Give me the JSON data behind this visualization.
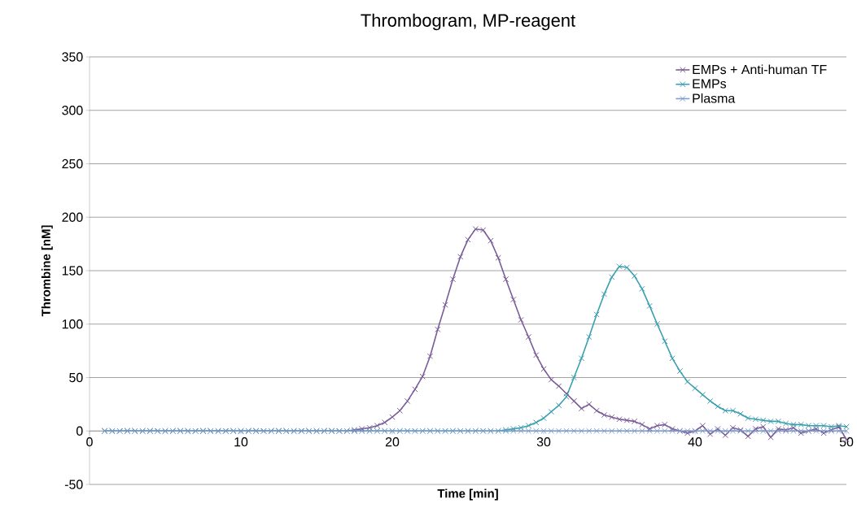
{
  "chart_data": {
    "type": "line",
    "title": "Thrombogram, MP-reagent",
    "xlabel": "Time [min]",
    "ylabel": "Thrombine [nM]",
    "x": [
      1,
      1.5,
      2,
      2.5,
      3,
      3.5,
      4,
      4.5,
      5,
      5.5,
      6,
      6.5,
      7,
      7.5,
      8,
      8.5,
      9,
      9.5,
      10,
      10.5,
      11,
      11.5,
      12,
      12.5,
      13,
      13.5,
      14,
      14.5,
      15,
      15.5,
      16,
      16.5,
      17,
      17.5,
      18,
      18.5,
      19,
      19.5,
      20,
      20.5,
      21,
      21.5,
      22,
      22.5,
      23,
      23.5,
      24,
      24.5,
      25,
      25.5,
      26,
      26.5,
      27,
      27.5,
      28,
      28.5,
      29,
      29.5,
      30,
      30.5,
      31,
      31.5,
      32,
      32.5,
      33,
      33.5,
      34,
      34.5,
      35,
      35.5,
      36,
      36.5,
      37,
      37.5,
      38,
      38.5,
      39,
      39.5,
      40,
      40.5,
      41,
      41.5,
      42,
      42.5,
      43,
      43.5,
      44,
      44.5,
      45,
      45.5,
      46,
      46.5,
      47,
      47.5,
      48,
      48.5,
      49,
      49.5,
      50
    ],
    "series": [
      {
        "name": "EMPs + Anti-human TF",
        "color": "#7a5c98",
        "marker": "cross",
        "values": [
          0,
          0,
          0,
          0,
          0,
          0,
          0,
          0,
          0,
          0,
          0,
          0,
          0,
          0,
          0,
          0,
          0,
          0,
          0,
          0,
          0,
          0,
          0,
          0,
          0,
          0,
          0,
          0,
          0,
          0,
          0,
          0,
          0,
          1,
          2,
          3,
          5,
          8,
          13,
          19,
          28,
          39,
          51,
          70,
          95,
          118,
          142,
          163,
          179,
          189,
          188,
          178,
          162,
          142,
          123,
          104,
          88,
          71,
          58,
          48,
          42,
          35,
          28,
          21,
          25,
          19,
          15,
          13,
          11,
          10,
          9,
          6,
          2,
          5,
          6,
          2,
          0,
          -2,
          0,
          5,
          -3,
          2,
          -4,
          3,
          1,
          -5,
          2,
          4,
          -6,
          2,
          1,
          3,
          -2,
          0,
          2,
          -2,
          1,
          4,
          -8
        ]
      },
      {
        "name": "EMPs",
        "color": "#3a9fb0",
        "marker": "cross",
        "values": [
          0,
          0,
          0,
          0,
          0,
          0,
          0,
          0,
          0,
          0,
          0,
          0,
          0,
          0,
          0,
          0,
          0,
          0,
          0,
          0,
          0,
          0,
          0,
          0,
          0,
          0,
          0,
          0,
          0,
          0,
          0,
          0,
          0,
          0,
          0,
          0,
          0,
          0,
          0,
          0,
          0,
          0,
          0,
          0,
          0,
          0,
          0,
          0,
          0,
          0,
          0,
          0,
          0,
          1,
          2,
          3,
          5,
          8,
          12,
          18,
          24,
          32,
          50,
          68,
          88,
          109,
          128,
          144,
          154,
          153,
          145,
          133,
          117,
          100,
          84,
          68,
          56,
          46,
          40,
          34,
          28,
          23,
          19,
          19,
          16,
          12,
          11,
          10,
          9,
          9,
          7,
          6,
          6,
          5,
          5,
          5,
          4,
          5,
          4
        ]
      },
      {
        "name": "Plasma",
        "color": "#7f9ed0",
        "marker": "cross",
        "values": [
          0,
          0,
          0,
          0,
          0,
          0,
          0,
          0,
          0,
          0,
          0,
          0,
          0,
          0,
          0,
          0,
          0,
          0,
          0,
          0,
          0,
          0,
          0,
          0,
          0,
          0,
          0,
          0,
          0,
          0,
          0,
          0,
          0,
          0,
          0,
          0,
          0,
          0,
          0,
          0,
          0,
          0,
          0,
          0,
          0,
          0,
          0,
          0,
          0,
          0,
          0,
          0,
          0,
          0,
          0,
          0,
          0,
          0,
          0,
          0,
          0,
          0,
          0,
          0,
          0,
          0,
          0,
          0,
          0,
          0,
          0,
          0,
          0,
          0,
          0,
          0,
          0,
          0,
          0,
          0,
          0,
          0,
          0,
          0,
          0,
          0,
          0,
          0,
          0,
          0,
          0,
          0,
          0,
          0,
          0,
          0,
          0,
          0,
          0
        ]
      }
    ],
    "xlim": [
      0,
      50
    ],
    "ylim": [
      -50,
      350
    ],
    "xticks": [
      0,
      10,
      20,
      30,
      40,
      50
    ],
    "yticks": [
      -50,
      0,
      50,
      100,
      150,
      200,
      250,
      300,
      350
    ],
    "grid": "y",
    "legend": "top right",
    "line_style": "solid"
  }
}
